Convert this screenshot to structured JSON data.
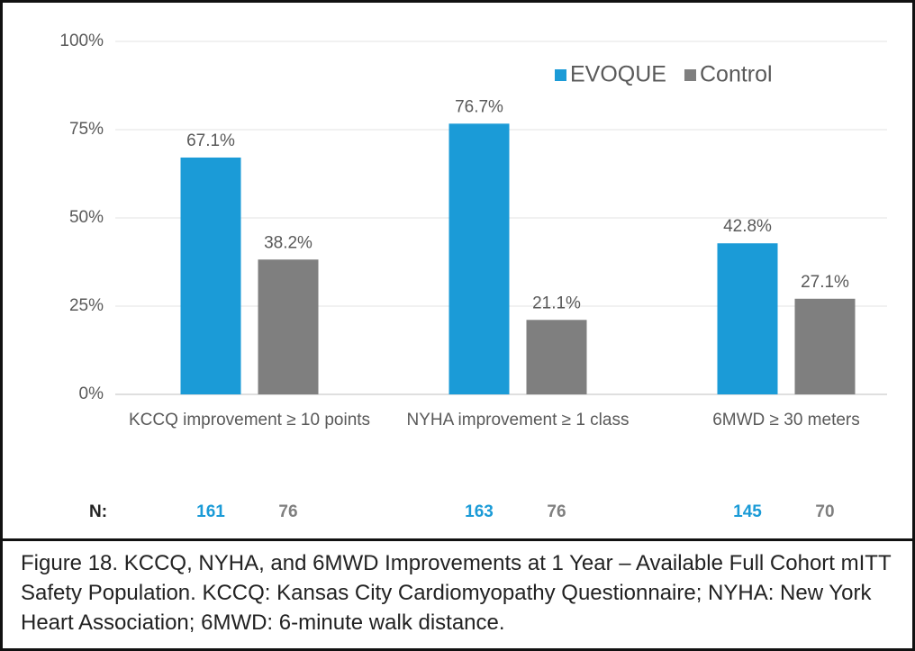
{
  "chart_data": {
    "type": "bar",
    "categories": [
      "KCCQ improvement ≥ 10 points",
      "NYHA improvement ≥ 1 class",
      "6MWD ≥ 30 meters"
    ],
    "series": [
      {
        "name": "EVOQUE",
        "color": "#1b9bd7",
        "values": [
          67.1,
          76.7,
          42.8
        ],
        "value_labels": [
          "67.1%",
          "76.7%",
          "42.8%"
        ],
        "n": [
          161,
          163,
          145
        ]
      },
      {
        "name": "Control",
        "color": "#7f7f7f",
        "values": [
          38.2,
          21.1,
          27.1
        ],
        "value_labels": [
          "38.2%",
          "21.1%",
          "27.1%"
        ],
        "n": [
          76,
          76,
          70
        ]
      }
    ],
    "n_label": "N:",
    "ylim": [
      0,
      100
    ],
    "yticks": [
      {
        "value": 0,
        "label": "0%"
      },
      {
        "value": 25,
        "label": "25%"
      },
      {
        "value": 50,
        "label": "50%"
      },
      {
        "value": 75,
        "label": "75%"
      },
      {
        "value": 100,
        "label": "100%"
      }
    ],
    "grid": true,
    "legend": "top-right"
  },
  "caption": "Figure 18. KCCQ, NYHA, and 6MWD Improvements at 1 Year – Available Full Cohort mITT Safety Population. KCCQ: Kansas City Cardiomyopathy Questionnaire; NYHA: New York Heart Association; 6MWD: 6-minute walk distance."
}
